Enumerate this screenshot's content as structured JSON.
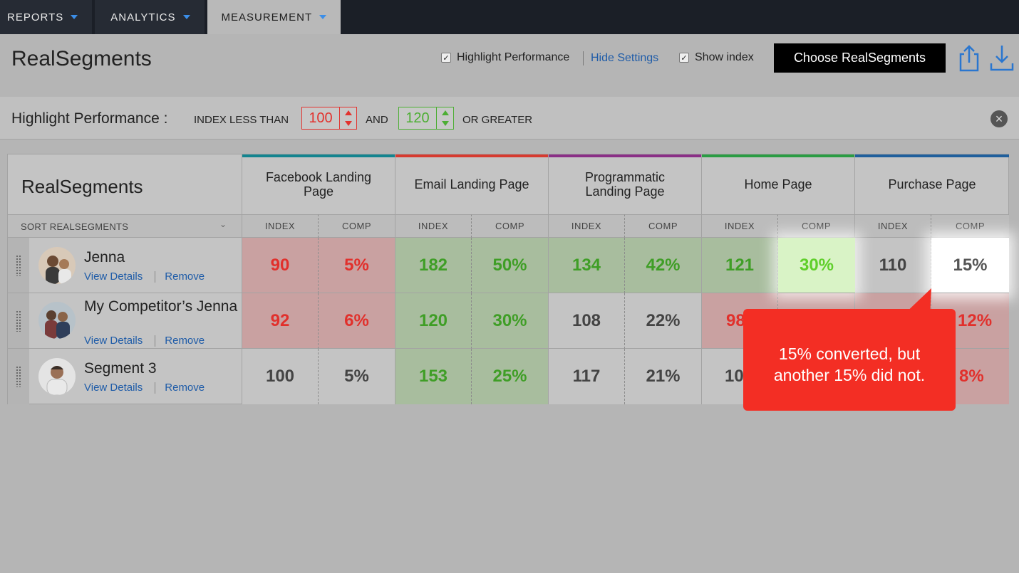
{
  "nav": {
    "tabs": [
      {
        "label": "REPORTS"
      },
      {
        "label": "ANALYTICS"
      },
      {
        "label": "MEASUREMENT"
      }
    ]
  },
  "header": {
    "title": "RealSegments",
    "highlight_performance_label": "Highlight Performance",
    "hide_settings_label": "Hide Settings",
    "show_index_label": "Show index",
    "choose_button_label": "Choose RealSegments"
  },
  "settings": {
    "label": "Highlight Performance :",
    "index_less_than": "INDEX LESS THAN",
    "low_value": "100",
    "and_label": "AND",
    "high_value": "120",
    "or_greater": "OR GREATER"
  },
  "table": {
    "segments_title": "RealSegments",
    "sort_label": "SORT REALSEGMENTS",
    "channels": [
      {
        "name": "Facebook Landing Page",
        "color": "#13848f"
      },
      {
        "name": "Email Landing Page",
        "color": "#d63a2f"
      },
      {
        "name": "Programmatic Landing Page",
        "color": "#8a2f86"
      },
      {
        "name": "Home Page",
        "color": "#2a9c43"
      },
      {
        "name": "Purchase Page",
        "color": "#1f5f9c"
      }
    ],
    "index_label": "INDEX",
    "comp_label": "COMP",
    "view_details": "View Details",
    "remove": "Remove",
    "rows": [
      {
        "name": "Jenna",
        "values": [
          "90",
          "5%",
          "182",
          "50%",
          "134",
          "42%",
          "121",
          "30%",
          "110",
          "15%"
        ]
      },
      {
        "name": "My Competitor’s Jenna",
        "values": [
          "92",
          "6%",
          "120",
          "30%",
          "108",
          "22%",
          "98",
          "",
          "",
          "12%"
        ]
      },
      {
        "name": "Segment 3",
        "values": [
          "100",
          "5%",
          "153",
          "25%",
          "117",
          "21%",
          "10",
          "",
          "",
          "8%"
        ]
      }
    ]
  },
  "callout": {
    "line1": "15% converted, but",
    "line2": "another 15% did not."
  }
}
